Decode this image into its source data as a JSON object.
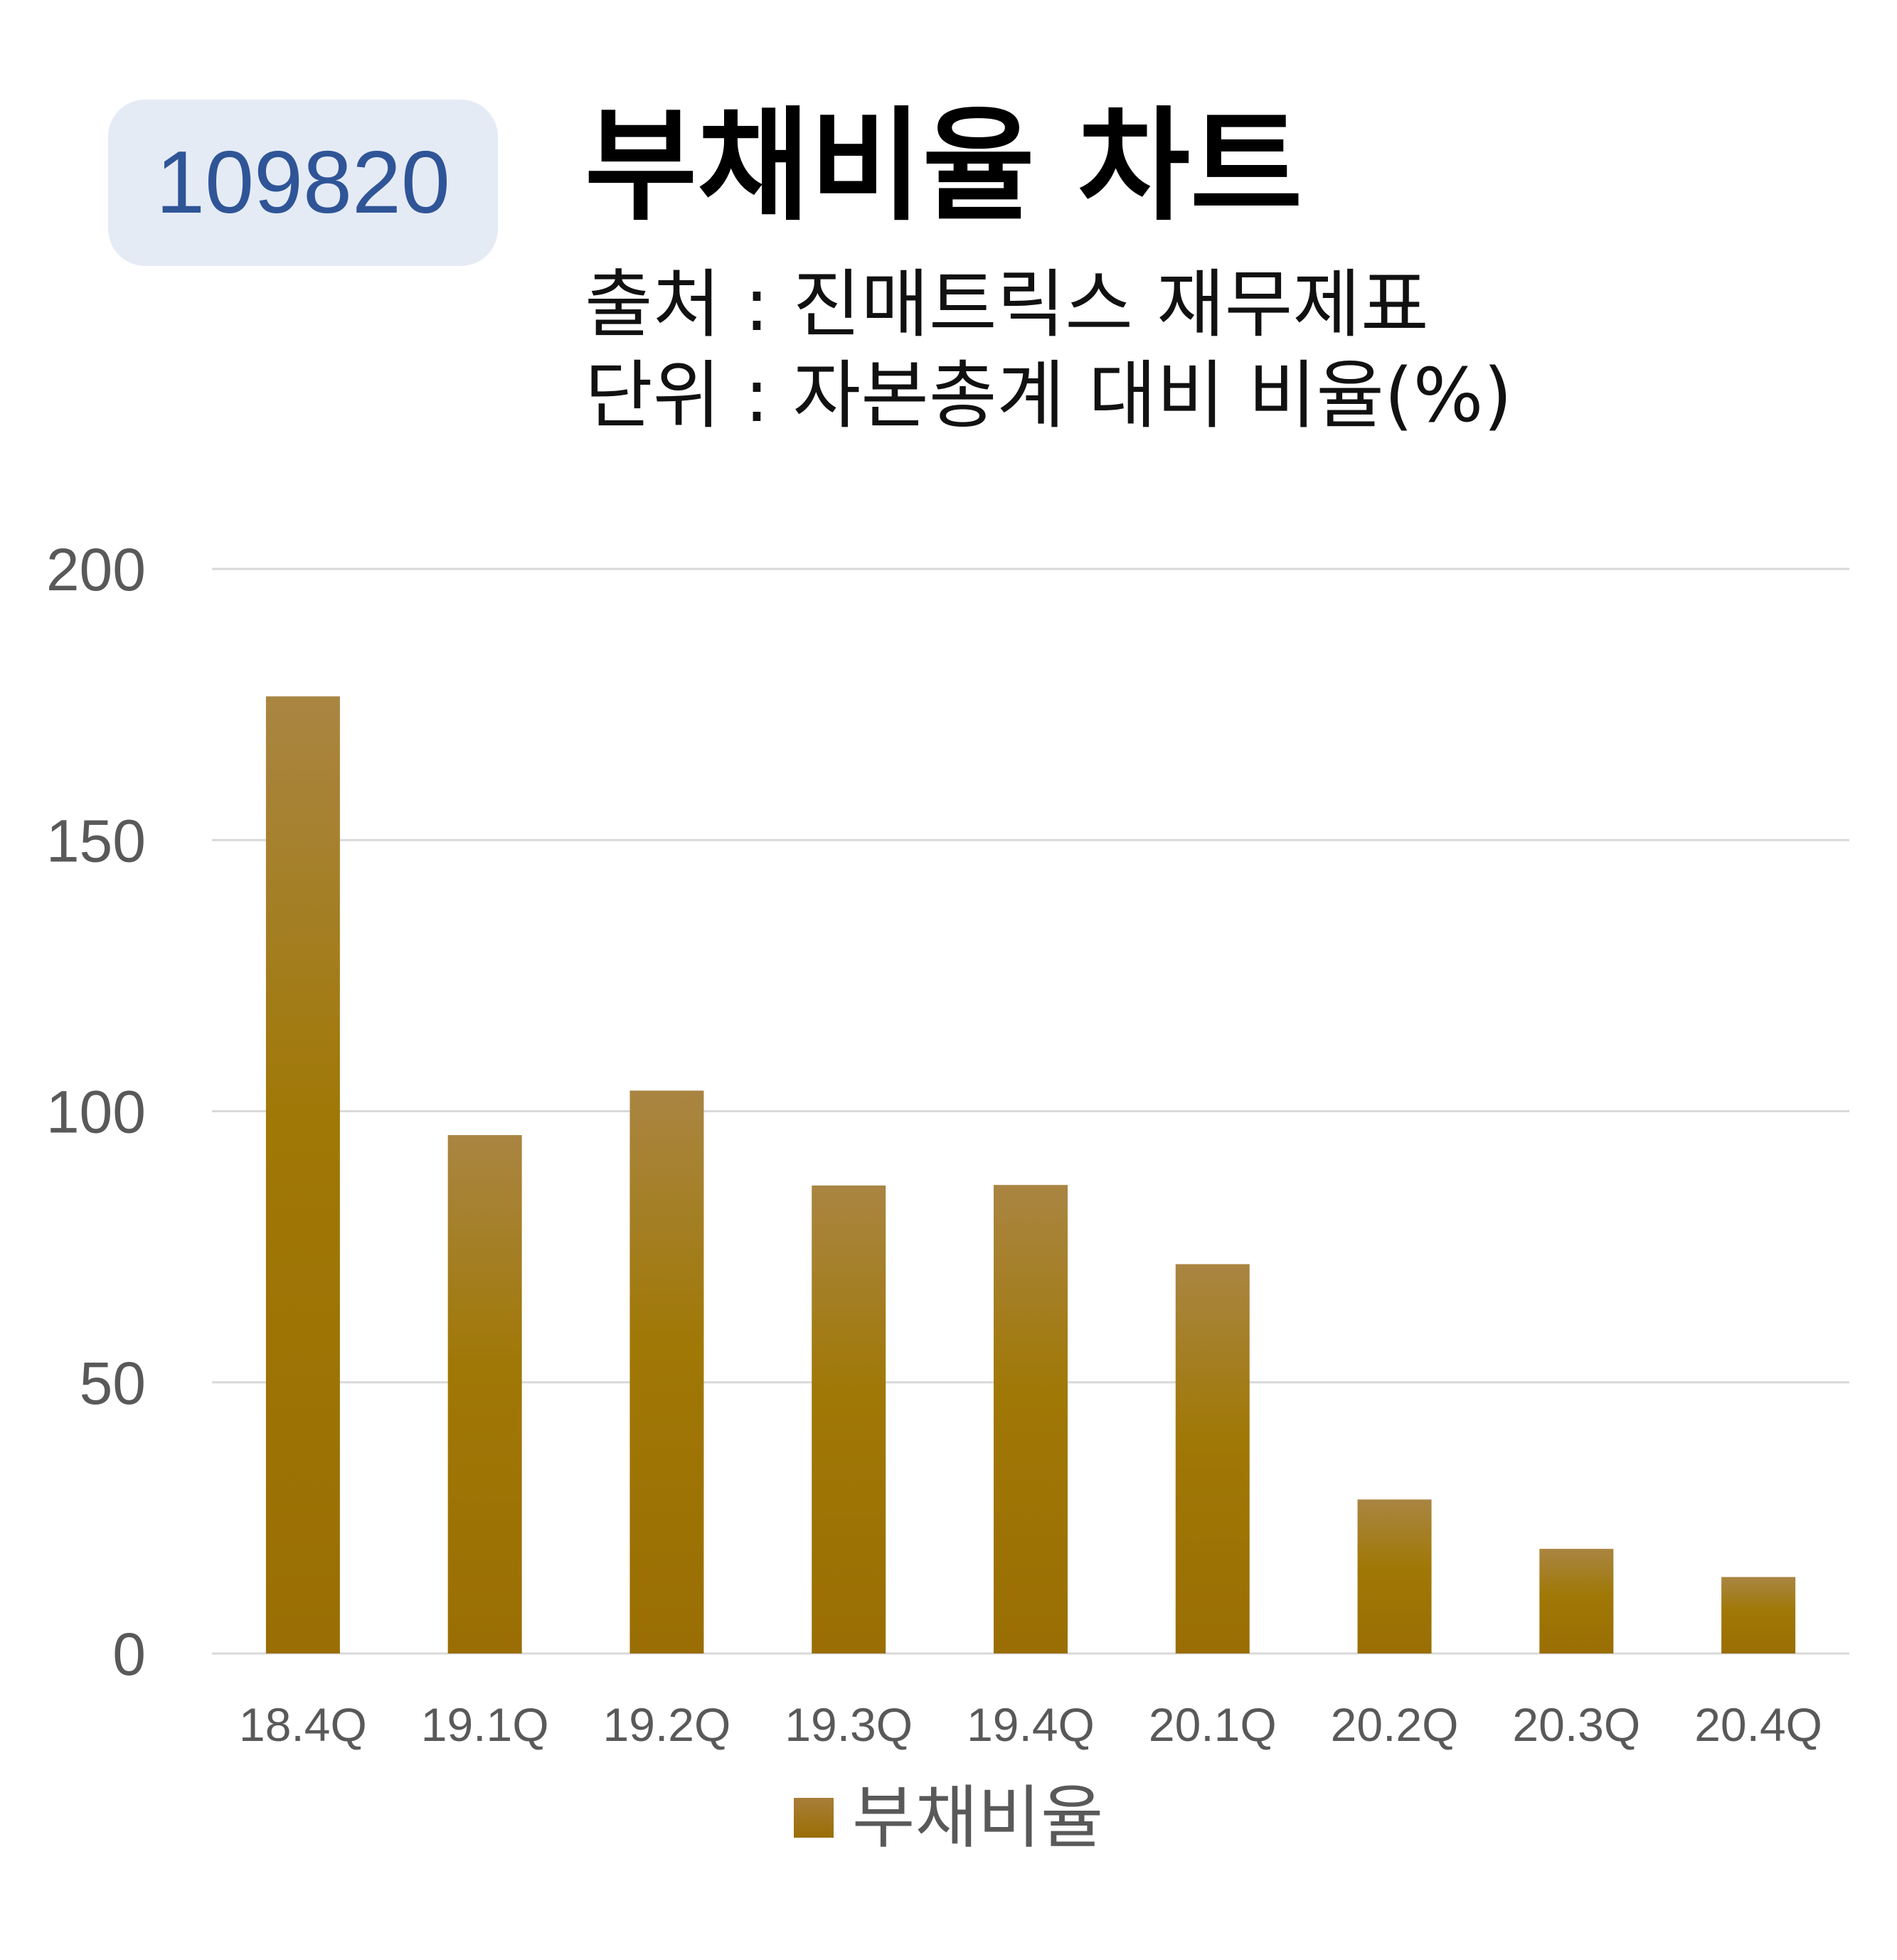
{
  "header": {
    "code": "109820",
    "title": "부채비율 차트",
    "source": "출처 : 진매트릭스 재무제표",
    "unit": "단위 : 자본총계 대비 비율(%)"
  },
  "colors": {
    "bar_top": "#a98542",
    "bar_bottom": "#9a6e04",
    "badge_bg": "#e5ebf5",
    "badge_text": "#2f5597",
    "gridline": "#d9d9d9",
    "axis_text": "#595959"
  },
  "chart_data": {
    "type": "bar",
    "categories": [
      "18.4Q",
      "19.1Q",
      "19.2Q",
      "19.3Q",
      "19.4Q",
      "20.1Q",
      "20.2Q",
      "20.3Q",
      "20.4Q"
    ],
    "series": [
      {
        "name": "부채비율",
        "values": [
          176.5,
          95.6,
          103.8,
          86.3,
          86.4,
          71.8,
          28.4,
          19.3,
          14.1
        ]
      }
    ],
    "ylim": [
      0,
      200
    ],
    "yticks": [
      0,
      50,
      100,
      150,
      200
    ],
    "grid": true,
    "legend_position": "bottom"
  }
}
